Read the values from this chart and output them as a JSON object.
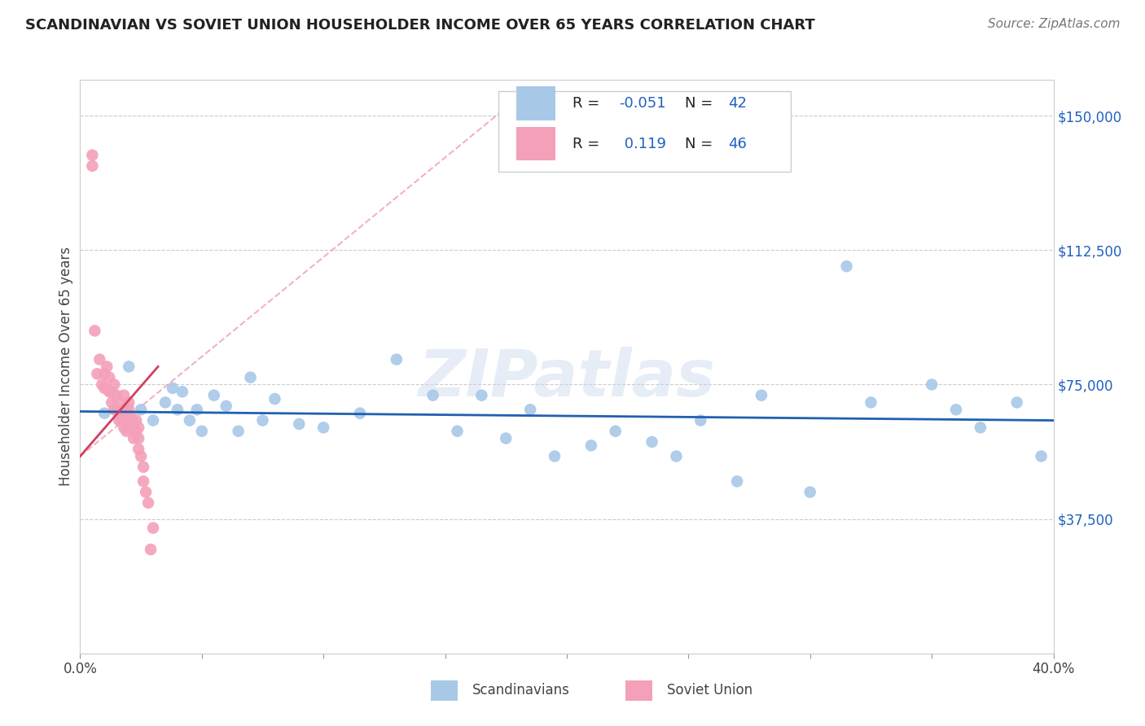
{
  "title": "SCANDINAVIAN VS SOVIET UNION HOUSEHOLDER INCOME OVER 65 YEARS CORRELATION CHART",
  "source": "Source: ZipAtlas.com",
  "ylabel": "Householder Income Over 65 years",
  "xlim": [
    0.0,
    0.4
  ],
  "ylim": [
    0,
    160000
  ],
  "scandinavian_color": "#a8c8e8",
  "soviet_color": "#f4a0b8",
  "trend_blue": "#2060b0",
  "trend_pink": "#d04060",
  "trend_pink_light": "#f090a8",
  "legend_R1": "-0.051",
  "legend_N1": "42",
  "legend_R2": "0.119",
  "legend_N2": "46",
  "legend_label1": "Scandinavians",
  "legend_label2": "Soviet Union",
  "watermark": "ZIPatlas",
  "blue_value_color": "#2060c0",
  "scandinavian_x": [
    0.01,
    0.02,
    0.025,
    0.03,
    0.035,
    0.038,
    0.04,
    0.042,
    0.045,
    0.048,
    0.05,
    0.055,
    0.06,
    0.065,
    0.07,
    0.075,
    0.08,
    0.09,
    0.1,
    0.115,
    0.13,
    0.145,
    0.155,
    0.165,
    0.175,
    0.185,
    0.195,
    0.21,
    0.22,
    0.235,
    0.245,
    0.255,
    0.27,
    0.28,
    0.3,
    0.315,
    0.325,
    0.35,
    0.36,
    0.37,
    0.385,
    0.395
  ],
  "scandinavian_y": [
    67000,
    80000,
    68000,
    65000,
    70000,
    74000,
    68000,
    73000,
    65000,
    68000,
    62000,
    72000,
    69000,
    62000,
    77000,
    65000,
    71000,
    64000,
    63000,
    67000,
    82000,
    72000,
    62000,
    72000,
    60000,
    68000,
    55000,
    58000,
    62000,
    59000,
    55000,
    65000,
    48000,
    72000,
    45000,
    108000,
    70000,
    75000,
    68000,
    63000,
    70000,
    55000
  ],
  "soviet_x": [
    0.005,
    0.005,
    0.006,
    0.007,
    0.008,
    0.009,
    0.01,
    0.01,
    0.011,
    0.012,
    0.012,
    0.013,
    0.013,
    0.014,
    0.014,
    0.015,
    0.015,
    0.016,
    0.016,
    0.017,
    0.017,
    0.018,
    0.018,
    0.018,
    0.019,
    0.019,
    0.019,
    0.02,
    0.02,
    0.02,
    0.021,
    0.021,
    0.022,
    0.022,
    0.023,
    0.023,
    0.024,
    0.024,
    0.024,
    0.025,
    0.026,
    0.026,
    0.027,
    0.028,
    0.029,
    0.03
  ],
  "soviet_y": [
    139000,
    136000,
    90000,
    78000,
    82000,
    75000,
    78000,
    74000,
    80000,
    73000,
    77000,
    70000,
    73000,
    68000,
    75000,
    72000,
    68000,
    65000,
    70000,
    67000,
    65000,
    68000,
    63000,
    72000,
    66000,
    62000,
    68000,
    70000,
    65000,
    68000,
    63000,
    66000,
    60000,
    64000,
    62000,
    65000,
    60000,
    63000,
    57000,
    55000,
    52000,
    48000,
    45000,
    42000,
    29000,
    35000
  ]
}
